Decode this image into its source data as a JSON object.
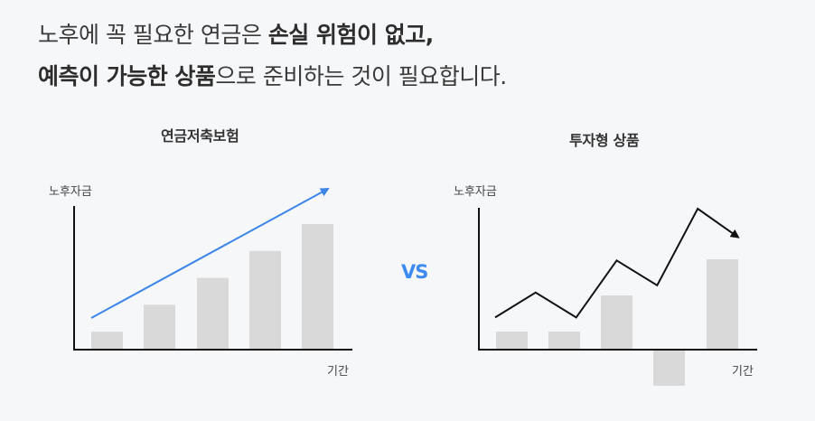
{
  "headline": {
    "line1_a": "노후에 꼭 필요한 연금은 ",
    "line1_b": "손실 위험이 없고,",
    "line2_a": "예측이 가능한 상품",
    "line2_b": "으로 준비하는 것이 필요합니다."
  },
  "vs_label": "VS",
  "colors": {
    "bar": "#d9d9d9",
    "axis": "#111111",
    "trend_arrow": "#3d86e8",
    "line": "#111111",
    "vs": "#3d8bf0",
    "background": "#f6f7f9"
  },
  "chart_data": [
    {
      "type": "bar",
      "title": "연금저축보험",
      "ylabel": "노후자금",
      "xlabel": "기간",
      "values": [
        1,
        2.5,
        4,
        5.5,
        7
      ],
      "ylim": [
        0,
        7
      ],
      "trend": "rising-arrow"
    },
    {
      "type": "bar",
      "title": "투자형 상품",
      "ylabel": "노후자금",
      "xlabel": "기간",
      "values": [
        1,
        1,
        3,
        -2,
        5
      ],
      "ylim": [
        -2,
        5
      ],
      "line_values": [
        1.7,
        3.1,
        1.7,
        4.9,
        3.5,
        7.8,
        6.2
      ],
      "line_ylim": [
        0,
        7.8
      ]
    }
  ]
}
